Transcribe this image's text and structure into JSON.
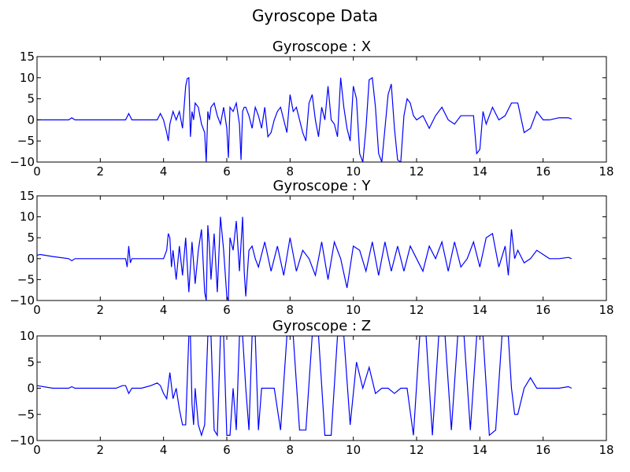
{
  "suptitle": "Gyroscope Data",
  "chart_data": [
    {
      "type": "line",
      "title": "Gyroscope : X",
      "xlim": [
        0,
        18
      ],
      "ylim": [
        -10,
        15
      ],
      "xticks": [
        "0",
        "2",
        "4",
        "6",
        "8",
        "10",
        "12",
        "14",
        "16",
        "18"
      ],
      "yticks": [
        "15",
        "10",
        "5",
        "0",
        "−5",
        "−10"
      ],
      "xtick_values": [
        0,
        2,
        4,
        6,
        8,
        10,
        12,
        14,
        16,
        18
      ],
      "ytick_values": [
        15,
        10,
        5,
        0,
        -5,
        -10
      ],
      "grid": false,
      "line_color": "#0000ff",
      "x": [
        0,
        0.5,
        1.0,
        1.1,
        1.2,
        1.5,
        2.0,
        2.5,
        2.8,
        2.9,
        3.0,
        3.3,
        3.6,
        3.8,
        3.9,
        4.0,
        4.1,
        4.15,
        4.2,
        4.3,
        4.4,
        4.5,
        4.6,
        4.7,
        4.75,
        4.8,
        4.85,
        4.9,
        4.95,
        5.0,
        5.1,
        5.2,
        5.3,
        5.35,
        5.4,
        5.45,
        5.5,
        5.6,
        5.7,
        5.8,
        5.9,
        6.0,
        6.05,
        6.1,
        6.2,
        6.3,
        6.4,
        6.45,
        6.5,
        6.55,
        6.6,
        6.7,
        6.8,
        6.9,
        7.0,
        7.1,
        7.2,
        7.3,
        7.4,
        7.5,
        7.6,
        7.7,
        7.8,
        7.9,
        8.0,
        8.1,
        8.2,
        8.3,
        8.4,
        8.5,
        8.6,
        8.7,
        8.8,
        8.9,
        9.0,
        9.1,
        9.2,
        9.3,
        9.4,
        9.5,
        9.6,
        9.7,
        9.8,
        9.9,
        10.0,
        10.1,
        10.2,
        10.3,
        10.4,
        10.5,
        10.6,
        10.7,
        10.8,
        10.9,
        11.0,
        11.1,
        11.2,
        11.3,
        11.4,
        11.5,
        11.6,
        11.7,
        11.8,
        11.9,
        12.0,
        12.2,
        12.4,
        12.6,
        12.8,
        13.0,
        13.2,
        13.4,
        13.6,
        13.8,
        13.9,
        14.0,
        14.1,
        14.2,
        14.4,
        14.6,
        14.8,
        15.0,
        15.2,
        15.4,
        15.6,
        15.8,
        16.0,
        16.2,
        16.5,
        16.8,
        16.9
      ],
      "y": [
        0,
        0,
        0,
        0.5,
        0,
        0,
        0,
        0,
        0,
        1.5,
        0,
        0,
        0,
        0,
        1.5,
        0,
        -3,
        -5,
        -1,
        2,
        0,
        2,
        -2,
        8,
        9.8,
        10,
        -4,
        2,
        0,
        4,
        3,
        -1,
        -3,
        -10,
        2,
        0,
        3,
        4,
        1,
        -1,
        3,
        -2,
        -9,
        3,
        2,
        4,
        -1,
        -9.5,
        2,
        3,
        3,
        1,
        -2,
        3,
        1,
        -2,
        3,
        -4,
        -3,
        0,
        2,
        3,
        0,
        -3,
        6,
        2,
        3,
        0,
        -3,
        -5,
        4,
        6,
        0,
        -4,
        3,
        0,
        8,
        0,
        -1,
        -4,
        10,
        3,
        -2,
        -5,
        8,
        5,
        -8,
        -10,
        -2,
        9.5,
        10,
        3,
        -8,
        -10,
        -2,
        6,
        8.5,
        -2,
        -9.5,
        -10,
        1,
        5,
        4,
        1,
        0,
        1,
        -2,
        1,
        3,
        0,
        -1,
        1,
        1,
        1,
        -8,
        -7,
        2,
        -1,
        3,
        0,
        1,
        4,
        4,
        -3,
        -2,
        2,
        0,
        0,
        0.5,
        0.5,
        0.2
      ]
    },
    {
      "type": "line",
      "title": "Gyroscope : Y",
      "xlim": [
        0,
        18
      ],
      "ylim": [
        -10,
        15
      ],
      "xticks": [
        "0",
        "2",
        "4",
        "6",
        "8",
        "10",
        "12",
        "14",
        "16",
        "18"
      ],
      "yticks": [
        "15",
        "10",
        "5",
        "0",
        "−5",
        "−10"
      ],
      "xtick_values": [
        0,
        2,
        4,
        6,
        8,
        10,
        12,
        14,
        16,
        18
      ],
      "ytick_values": [
        15,
        10,
        5,
        0,
        -5,
        -10
      ],
      "grid": false,
      "line_color": "#0000ff",
      "x": [
        0,
        0.1,
        0.5,
        1.0,
        1.1,
        1.2,
        1.5,
        2.0,
        2.5,
        2.8,
        2.85,
        2.9,
        2.95,
        3.0,
        3.3,
        3.6,
        4.0,
        4.1,
        4.15,
        4.2,
        4.25,
        4.3,
        4.4,
        4.5,
        4.6,
        4.7,
        4.8,
        4.9,
        5.0,
        5.1,
        5.2,
        5.3,
        5.35,
        5.4,
        5.45,
        5.5,
        5.6,
        5.7,
        5.8,
        5.9,
        6.0,
        6.05,
        6.1,
        6.2,
        6.3,
        6.4,
        6.5,
        6.55,
        6.6,
        6.7,
        6.8,
        6.9,
        7.0,
        7.2,
        7.4,
        7.6,
        7.8,
        8.0,
        8.2,
        8.4,
        8.6,
        8.8,
        9.0,
        9.2,
        9.4,
        9.6,
        9.8,
        10.0,
        10.2,
        10.4,
        10.6,
        10.8,
        11.0,
        11.2,
        11.4,
        11.6,
        11.8,
        12.0,
        12.2,
        12.4,
        12.6,
        12.8,
        13.0,
        13.2,
        13.4,
        13.6,
        13.8,
        14.0,
        14.2,
        14.4,
        14.6,
        14.8,
        14.9,
        15.0,
        15.1,
        15.2,
        15.4,
        15.6,
        15.8,
        16.0,
        16.2,
        16.5,
        16.8,
        16.9
      ],
      "y": [
        0.8,
        1,
        0.5,
        0,
        -0.5,
        0,
        0,
        0,
        0,
        0,
        -2,
        3,
        -1,
        0,
        0,
        0,
        0,
        2,
        6,
        5,
        -2,
        2,
        -5,
        3,
        -4,
        5,
        -8,
        4,
        -6,
        2,
        7,
        -8,
        -10,
        8,
        3,
        -5,
        6,
        -8,
        10,
        2,
        -9,
        -10,
        5,
        2,
        9,
        -3,
        10,
        -3,
        -9,
        2,
        3,
        0,
        -2,
        4,
        -3,
        3,
        -4,
        5,
        -3,
        2,
        0,
        -4,
        4,
        -5,
        4,
        0,
        -7,
        3,
        2,
        -3,
        4,
        -4,
        4,
        -3,
        3,
        -3,
        3,
        0,
        -3,
        3,
        0,
        4,
        -3,
        4,
        -2,
        0,
        4,
        -2,
        5,
        6,
        -2,
        3,
        -4,
        7,
        0,
        2,
        -1,
        0,
        2,
        1,
        0,
        0,
        0.3,
        0
      ]
    },
    {
      "type": "line",
      "title": "Gyroscope : Z",
      "xlim": [
        0,
        18
      ],
      "ylim": [
        -10,
        10
      ],
      "xticks": [
        "0",
        "2",
        "4",
        "6",
        "8",
        "10",
        "12",
        "14",
        "16",
        "18"
      ],
      "yticks": [
        "10",
        "5",
        "0",
        "−5",
        "−10"
      ],
      "xtick_values": [
        0,
        2,
        4,
        6,
        8,
        10,
        12,
        14,
        16,
        18
      ],
      "ytick_values": [
        10,
        5,
        0,
        -5,
        -10
      ],
      "grid": false,
      "line_color": "#0000ff",
      "x": [
        0,
        0.5,
        1.0,
        1.1,
        1.2,
        1.5,
        2.0,
        2.5,
        2.7,
        2.8,
        2.9,
        3.0,
        3.3,
        3.6,
        3.8,
        3.9,
        4.0,
        4.1,
        4.2,
        4.3,
        4.4,
        4.5,
        4.6,
        4.7,
        4.8,
        4.85,
        4.9,
        4.95,
        5.0,
        5.1,
        5.2,
        5.3,
        5.4,
        5.5,
        5.6,
        5.7,
        5.8,
        5.9,
        6.0,
        6.1,
        6.2,
        6.3,
        6.4,
        6.5,
        6.6,
        6.7,
        6.8,
        6.9,
        7.0,
        7.1,
        7.3,
        7.5,
        7.7,
        7.9,
        8.1,
        8.3,
        8.5,
        8.7,
        8.9,
        9.1,
        9.3,
        9.5,
        9.7,
        9.9,
        10.1,
        10.3,
        10.5,
        10.7,
        10.9,
        11.1,
        11.3,
        11.5,
        11.7,
        11.9,
        12.1,
        12.3,
        12.5,
        12.7,
        12.9,
        13.1,
        13.3,
        13.5,
        13.7,
        13.9,
        14.1,
        14.3,
        14.5,
        14.7,
        14.9,
        15.0,
        15.1,
        15.2,
        15.4,
        15.6,
        15.8,
        16.0,
        16.2,
        16.5,
        16.8,
        16.9
      ],
      "y": [
        0.5,
        0,
        0,
        0.3,
        0,
        0,
        0,
        0,
        0.5,
        0.5,
        -1,
        0,
        0,
        0.5,
        1,
        0.5,
        -1,
        -2,
        3,
        -2,
        0,
        -4,
        -7,
        -7,
        10,
        10,
        -3,
        -7,
        0,
        -7,
        -9,
        -7,
        10,
        10,
        -8,
        -9,
        10,
        10,
        -9,
        -9,
        0,
        -8,
        10,
        10,
        0,
        -8,
        10,
        10,
        -8,
        0,
        0,
        0,
        -8,
        10,
        10,
        -8,
        -8,
        10,
        10,
        -9,
        -9,
        10,
        10,
        -7,
        5,
        0,
        4,
        -1,
        0,
        0,
        -1,
        0,
        0,
        -9,
        10,
        10,
        -9,
        10,
        10,
        -8,
        10,
        10,
        -8,
        10,
        10,
        -9,
        -8,
        10,
        10,
        0,
        -5,
        -5,
        0,
        2,
        0,
        0,
        0,
        0,
        0.3,
        0
      ]
    }
  ]
}
